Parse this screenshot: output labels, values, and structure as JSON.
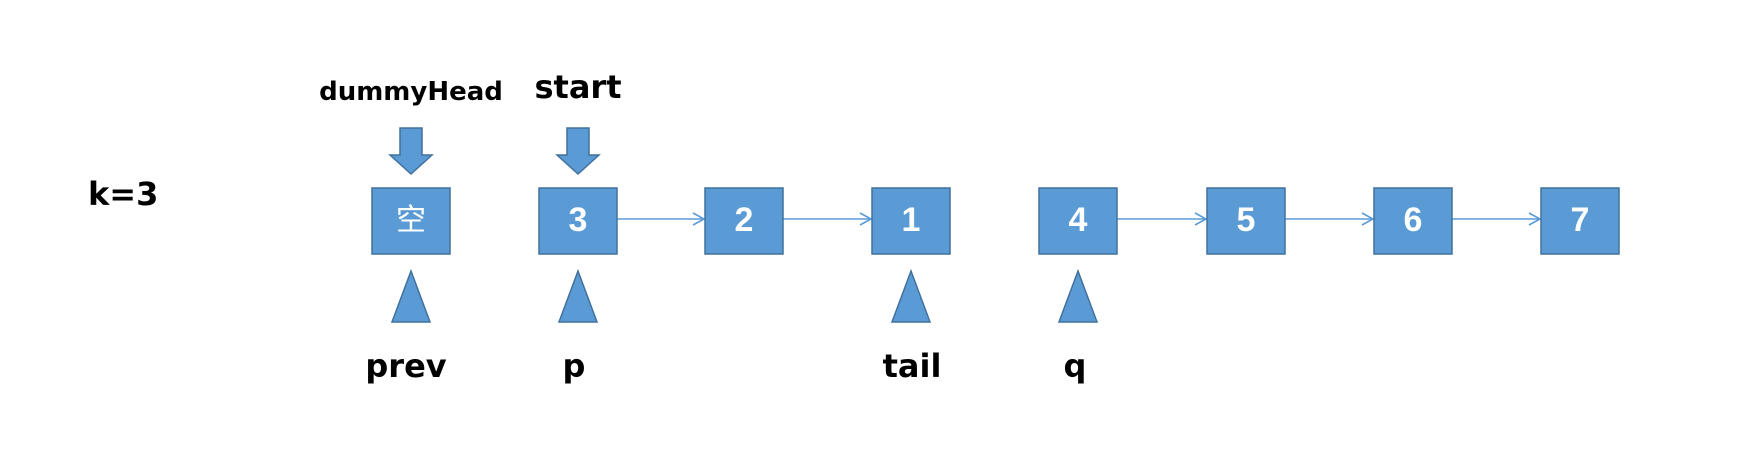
{
  "k_label": "k=3",
  "nodes": [
    {
      "id": "dummy",
      "label": "空"
    },
    {
      "id": "n3",
      "label": "3"
    },
    {
      "id": "n2",
      "label": "2"
    },
    {
      "id": "n1",
      "label": "1"
    },
    {
      "id": "n4",
      "label": "4"
    },
    {
      "id": "n5",
      "label": "5"
    },
    {
      "id": "n6",
      "label": "6"
    },
    {
      "id": "n7",
      "label": "7"
    }
  ],
  "links": [
    {
      "from": "n3",
      "to": "n2"
    },
    {
      "from": "n2",
      "to": "n1"
    },
    {
      "from": "n4",
      "to": "n5"
    },
    {
      "from": "n5",
      "to": "n6"
    },
    {
      "from": "n6",
      "to": "n7"
    }
  ],
  "top_pointers": [
    {
      "name": "dummyHead",
      "target": "dummy"
    },
    {
      "name": "start",
      "target": "n3"
    }
  ],
  "bottom_pointers": [
    {
      "name": "prev",
      "target": "dummy"
    },
    {
      "name": "p",
      "target": "n3"
    },
    {
      "name": "tail",
      "target": "n1"
    },
    {
      "name": "q",
      "target": "n4"
    }
  ],
  "colors": {
    "node_fill": "#5b9bd5",
    "node_stroke": "#41719c",
    "text": "#000000"
  }
}
